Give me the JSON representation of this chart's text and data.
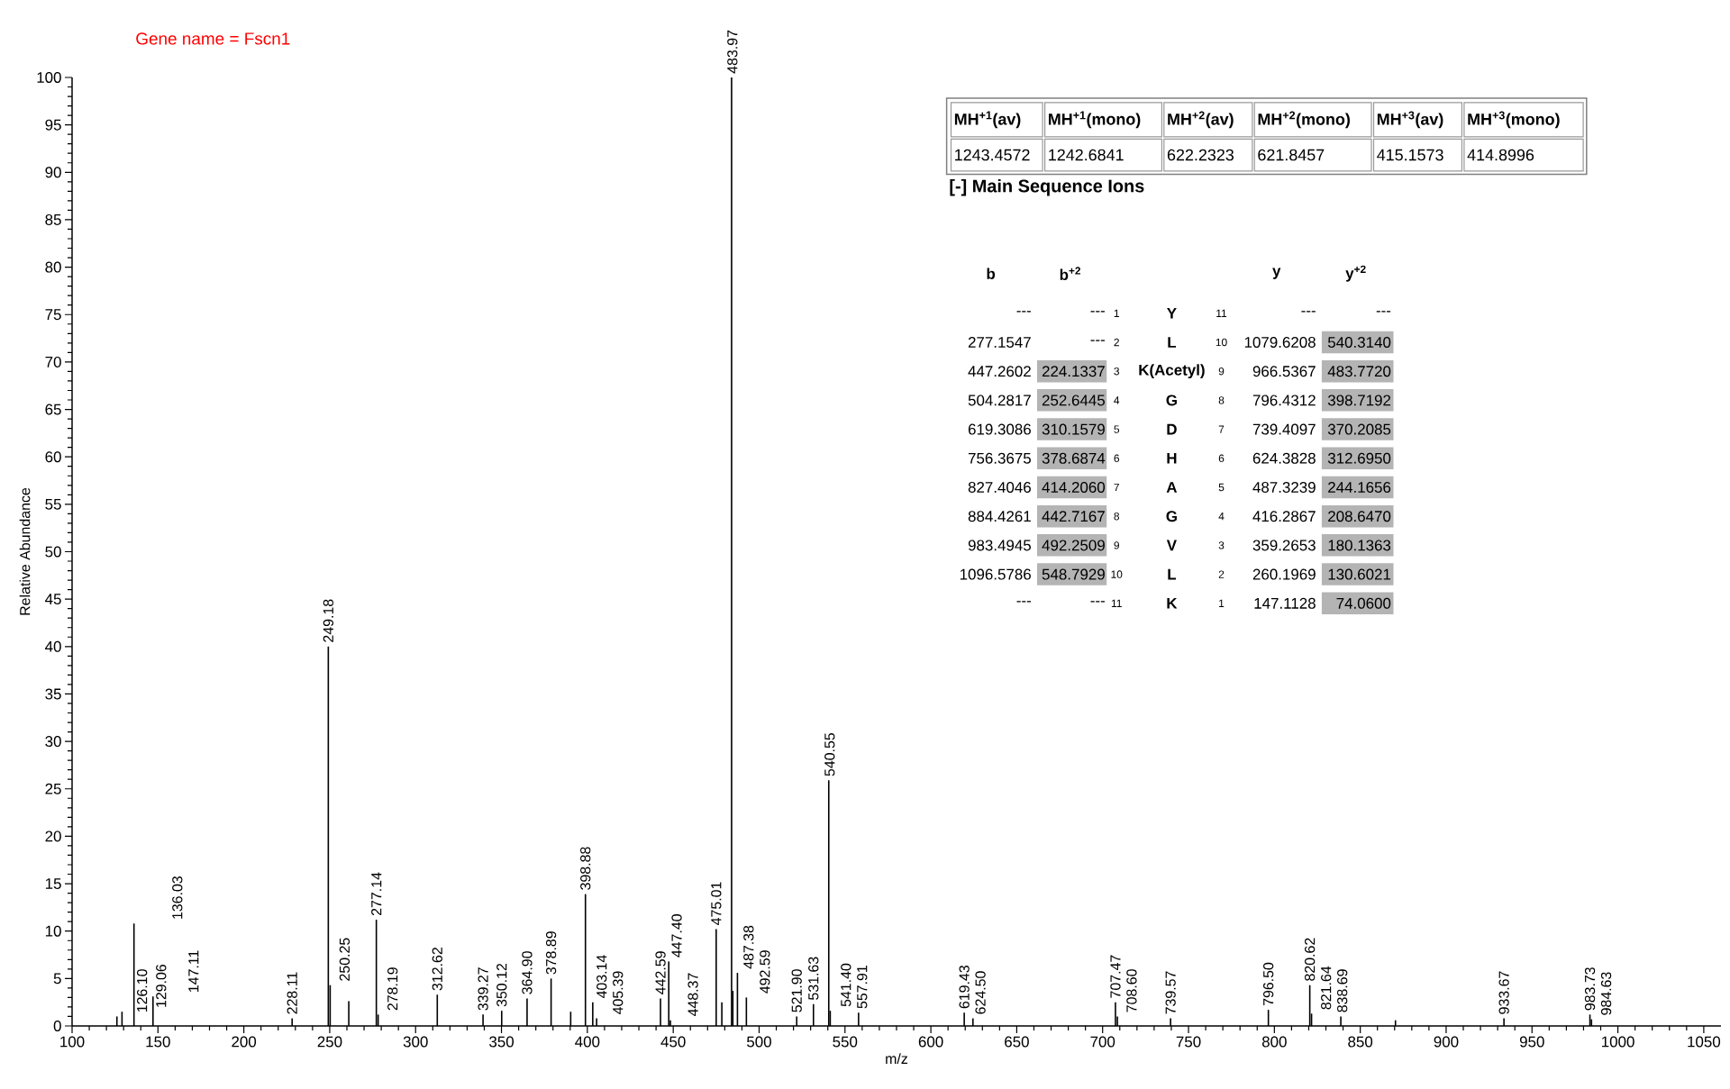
{
  "chart_data": {
    "type": "bar",
    "title": "Gene name = Fscn1",
    "xlabel": "m/z",
    "ylabel": "Relative Abundance",
    "color": "#000000",
    "xlim": [
      100,
      1060
    ],
    "ylim": [
      0,
      100
    ],
    "xticks": [
      100,
      150,
      200,
      250,
      300,
      350,
      400,
      450,
      500,
      550,
      600,
      650,
      700,
      750,
      800,
      850,
      900,
      950,
      1000,
      1050
    ],
    "yticks": [
      0,
      5,
      10,
      15,
      20,
      25,
      30,
      35,
      40,
      45,
      50,
      55,
      60,
      65,
      70,
      75,
      80,
      85,
      90,
      95,
      100
    ],
    "x": [
      126.1,
      129.06,
      136.03,
      147.11,
      228.11,
      249.18,
      250.25,
      261.1,
      277.14,
      278.19,
      312.62,
      339.27,
      350.12,
      364.9,
      378.89,
      390.3,
      398.88,
      403.14,
      405.39,
      442.59,
      447.4,
      448.37,
      475.01,
      478.3,
      483.97,
      484.7,
      487.38,
      492.59,
      521.9,
      531.63,
      540.55,
      541.4,
      557.91,
      619.43,
      624.5,
      707.47,
      708.6,
      739.57,
      796.5,
      820.62,
      821.64,
      838.69,
      870.5,
      933.67,
      983.73,
      984.63
    ],
    "values": [
      1.0,
      1.5,
      10.8,
      3.1,
      0.8,
      40.0,
      4.3,
      2.6,
      11.2,
      1.2,
      3.3,
      1.2,
      1.6,
      2.9,
      5.0,
      1.5,
      13.9,
      2.5,
      0.8,
      2.9,
      6.8,
      0.6,
      10.2,
      2.5,
      100,
      3.7,
      5.6,
      3.0,
      1.0,
      2.3,
      25.9,
      1.6,
      1.4,
      1.4,
      0.8,
      2.5,
      1.0,
      0.8,
      1.7,
      4.3,
      1.3,
      1.0,
      0.6,
      0.8,
      1.2,
      0.7
    ],
    "annotations": [
      "MH$^{+1}$(av)",
      "MH$^{+1}$(mono)",
      "MH$^{+2}$(av)",
      "MH$^{+2}$(mono)",
      "MH$^{+3}$(av)",
      "MH$^{+3}$(mono)",
      "1243.4572",
      "1242.6841",
      "622.2323",
      "621.8457",
      "415.1573",
      "414.8996",
      "[-] Main Sequence Ions",
      "b",
      "b$^{+2}$",
      "y",
      "y$^{+2}$",
      "---",
      "---",
      "1",
      "Y",
      "11",
      "---",
      "---",
      "277.1547",
      "---",
      "2",
      "L",
      "10",
      "1079.6208",
      "540.3140",
      "447.2602",
      "224.1337",
      "3",
      "K(Acetyl)",
      "9",
      "966.5367",
      "483.7720",
      "504.2817",
      "252.6445",
      "4",
      "G",
      "8",
      "796.4312",
      "398.7192",
      "619.3086",
      "310.1579",
      "5",
      "D",
      "7",
      "739.4097",
      "370.2085",
      "756.3675",
      "378.6874",
      "6",
      "H",
      "6",
      "624.3828",
      "312.6950",
      "827.4046",
      "414.2060",
      "7",
      "A",
      "5",
      "487.3239",
      "244.1656",
      "884.4261",
      "442.7167",
      "8",
      "G",
      "4",
      "416.2867",
      "208.6470",
      "983.4945",
      "492.2509",
      "9",
      "V",
      "3",
      "359.2653",
      "180.1363",
      "1096.5786",
      "548.7929",
      "10",
      "L",
      "2",
      "260.1969",
      "130.6021",
      "---",
      "---",
      "11",
      "K",
      "1",
      "147.1128",
      "74.0600",
      {
        "text": "126.10",
        "x": 126.1,
        "y": 1.0
      },
      {
        "text": "129.06",
        "x": 129.06,
        "y": 1.5
      },
      {
        "text": "136.03",
        "x": 136.03,
        "y": 10.8
      },
      {
        "text": "147.11",
        "x": 147.11,
        "y": 3.1
      },
      {
        "text": "228.11",
        "x": 228.11,
        "y": 0.8
      },
      {
        "text": "249.18",
        "x": 249.18,
        "y": 40.0
      },
      {
        "text": "250.25",
        "x": 250.25,
        "y": 4.3
      },
      {
        "text": "277.14",
        "x": 277.14,
        "y": 11.2
      },
      {
        "text": "278.19",
        "x": 278.19,
        "y": 1.2
      },
      {
        "text": "312.62",
        "x": 312.62,
        "y": 3.3
      },
      {
        "text": "339.27",
        "x": 339.27,
        "y": 1.2
      },
      {
        "text": "350.12",
        "x": 350.12,
        "y": 1.6
      },
      {
        "text": "364.90",
        "x": 364.9,
        "y": 2.9
      },
      {
        "text": "378.89",
        "x": 378.89,
        "y": 5.0
      },
      {
        "text": "398.88",
        "x": 398.88,
        "y": 13.9
      },
      {
        "text": "403.14",
        "x": 403.14,
        "y": 2.5
      },
      {
        "text": "405.39",
        "x": 405.39,
        "y": 0.8
      },
      {
        "text": "442.59",
        "x": 442.59,
        "y": 2.9
      },
      {
        "text": "447.40",
        "x": 447.4,
        "y": 6.8
      },
      {
        "text": "448.37",
        "x": 448.37,
        "y": 0.6
      },
      {
        "text": "475.01",
        "x": 475.01,
        "y": 10.2
      },
      {
        "text": "483.97",
        "x": 483.97,
        "y": 100
      },
      {
        "text": "487.38",
        "x": 487.38,
        "y": 5.6
      },
      {
        "text": "492.59",
        "x": 492.59,
        "y": 3.0
      },
      {
        "text": "521.90",
        "x": 521.9,
        "y": 1.0
      },
      {
        "text": "531.63",
        "x": 531.63,
        "y": 2.3
      },
      {
        "text": "540.55",
        "x": 540.55,
        "y": 25.9
      },
      {
        "text": "541.40",
        "x": 541.4,
        "y": 1.6
      },
      {
        "text": "557.91",
        "x": 557.91,
        "y": 1.4
      },
      {
        "text": "619.43",
        "x": 619.43,
        "y": 1.4
      },
      {
        "text": "624.50",
        "x": 624.5,
        "y": 0.8
      },
      {
        "text": "707.47",
        "x": 707.47,
        "y": 2.5
      },
      {
        "text": "708.60",
        "x": 708.6,
        "y": 1.0
      },
      {
        "text": "739.57",
        "x": 739.57,
        "y": 0.8
      },
      {
        "text": "796.50",
        "x": 796.5,
        "y": 1.7
      },
      {
        "text": "820.62",
        "x": 820.62,
        "y": 4.3
      },
      {
        "text": "821.64",
        "x": 821.64,
        "y": 1.3
      },
      {
        "text": "838.69",
        "x": 838.69,
        "y": 1.0
      },
      {
        "text": "933.67",
        "x": 933.67,
        "y": 0.8
      },
      {
        "text": "983.73",
        "x": 983.73,
        "y": 1.2
      },
      {
        "text": "984.63",
        "x": 984.63,
        "y": 0.7
      }
    ]
  }
}
